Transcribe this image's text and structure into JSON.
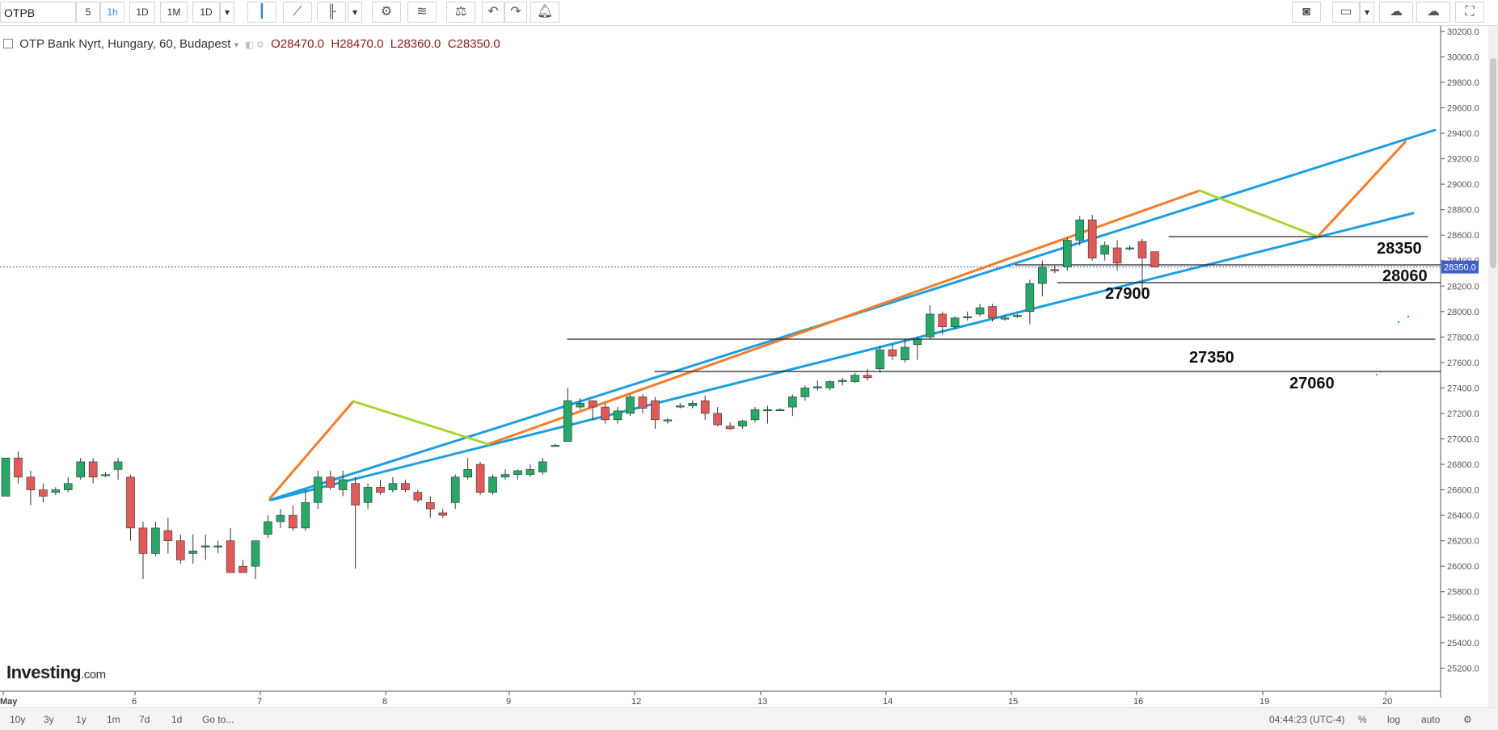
{
  "toolbar": {
    "symbol": "OTPB",
    "intervals": [
      "5",
      "1h",
      "1D",
      "1M",
      "1D"
    ],
    "active_interval": "1h",
    "icons": [
      "candlestick-icon",
      "line-chart-icon",
      "bar-style-icon",
      "dropdown-icon",
      "settings-icon",
      "indicators-icon",
      "compare-icon",
      "undo-icon",
      "redo-icon",
      "alert-icon"
    ],
    "right_icons": [
      "camera-icon",
      "layout-icon",
      "cloud-download-icon",
      "cloud-upload-icon",
      "fullscreen-icon"
    ]
  },
  "legend": {
    "title": "OTP Bank Nyrt, Hungary, 60, Budapest",
    "open": "O28470.0",
    "high": "H28470.0",
    "low": "L28360.0",
    "close": "C28350.0"
  },
  "logo": {
    "name": "Investing",
    "suffix": ".com"
  },
  "bottom": {
    "ranges": [
      "10y",
      "3y",
      "1y",
      "1m",
      "7d",
      "1d"
    ],
    "goto": "Go to...",
    "time": "04:44:23 (UTC-4)",
    "percent": "%",
    "log": "log",
    "auto": "auto"
  },
  "colors": {
    "up": "#26a869",
    "down": "#e05a5a",
    "channel": "#1e9ee0",
    "orange": "#f47c2a",
    "lime": "#a8d530",
    "price_line": "#3d5fc9"
  },
  "chart_data": {
    "type": "candlestick",
    "price_axis_ticks": [
      30200,
      30000,
      29800,
      29600,
      29400,
      29200,
      29000,
      28800,
      28600,
      28400,
      28200,
      28000,
      27800,
      27600,
      27400,
      27200,
      27000,
      26800,
      26600,
      26400,
      26200,
      26000,
      25800,
      25600,
      25400,
      25200
    ],
    "price_axis_format": "0.0",
    "time_axis_labels": [
      "May",
      "6",
      "7",
      "8",
      "9",
      "12",
      "13",
      "14",
      "15",
      "16",
      "19",
      "20"
    ],
    "current_price": 28350.0,
    "current_price_label": "28350.0",
    "ylim": [
      25050,
      30250
    ],
    "candles": [
      {
        "o": 26550,
        "h": 26800,
        "l": 26550,
        "c": 26850
      },
      {
        "o": 26850,
        "h": 26900,
        "l": 26650,
        "c": 26700
      },
      {
        "o": 26700,
        "h": 26750,
        "l": 26480,
        "c": 26600
      },
      {
        "o": 26600,
        "h": 26650,
        "l": 26500,
        "c": 26550
      },
      {
        "o": 26580,
        "h": 26620,
        "l": 26560,
        "c": 26600
      },
      {
        "o": 26600,
        "h": 26700,
        "l": 26580,
        "c": 26650
      },
      {
        "o": 26700,
        "h": 26850,
        "l": 26680,
        "c": 26820
      },
      {
        "o": 26820,
        "h": 26850,
        "l": 26650,
        "c": 26700
      },
      {
        "o": 26720,
        "h": 26740,
        "l": 26700,
        "c": 26720
      },
      {
        "o": 26760,
        "h": 26850,
        "l": 26680,
        "c": 26820
      },
      {
        "o": 26700,
        "h": 26720,
        "l": 26200,
        "c": 26300
      },
      {
        "o": 26300,
        "h": 26350,
        "l": 25900,
        "c": 26100
      },
      {
        "o": 26100,
        "h": 26350,
        "l": 26080,
        "c": 26300
      },
      {
        "o": 26280,
        "h": 26380,
        "l": 26100,
        "c": 26200
      },
      {
        "o": 26200,
        "h": 26250,
        "l": 26020,
        "c": 26050
      },
      {
        "o": 26100,
        "h": 26250,
        "l": 26020,
        "c": 26120
      },
      {
        "o": 26150,
        "h": 26250,
        "l": 26050,
        "c": 26160
      },
      {
        "o": 26160,
        "h": 26200,
        "l": 26100,
        "c": 26160
      },
      {
        "o": 26200,
        "h": 26300,
        "l": 25950,
        "c": 25950
      },
      {
        "o": 26000,
        "h": 26050,
        "l": 25950,
        "c": 25950
      },
      {
        "o": 26000,
        "h": 26200,
        "l": 25900,
        "c": 26200
      },
      {
        "o": 26250,
        "h": 26400,
        "l": 26220,
        "c": 26350
      },
      {
        "o": 26350,
        "h": 26450,
        "l": 26300,
        "c": 26400
      },
      {
        "o": 26400,
        "h": 26480,
        "l": 26280,
        "c": 26300
      },
      {
        "o": 26300,
        "h": 26600,
        "l": 26280,
        "c": 26500
      },
      {
        "o": 26500,
        "h": 26750,
        "l": 26450,
        "c": 26700
      },
      {
        "o": 26700,
        "h": 26750,
        "l": 26600,
        "c": 26620
      },
      {
        "o": 26600,
        "h": 26750,
        "l": 26550,
        "c": 26680
      },
      {
        "o": 26650,
        "h": 26700,
        "l": 25980,
        "c": 26480
      },
      {
        "o": 26500,
        "h": 26650,
        "l": 26450,
        "c": 26620
      },
      {
        "o": 26620,
        "h": 26680,
        "l": 26560,
        "c": 26580
      },
      {
        "o": 26600,
        "h": 26700,
        "l": 26580,
        "c": 26650
      },
      {
        "o": 26650,
        "h": 26680,
        "l": 26580,
        "c": 26600
      },
      {
        "o": 26580,
        "h": 26600,
        "l": 26500,
        "c": 26520
      },
      {
        "o": 26500,
        "h": 26550,
        "l": 26380,
        "c": 26450
      },
      {
        "o": 26420,
        "h": 26450,
        "l": 26380,
        "c": 26400
      },
      {
        "o": 26500,
        "h": 26720,
        "l": 26450,
        "c": 26700
      },
      {
        "o": 26700,
        "h": 26850,
        "l": 26680,
        "c": 26760
      },
      {
        "o": 26800,
        "h": 26820,
        "l": 26560,
        "c": 26580
      },
      {
        "o": 26580,
        "h": 26720,
        "l": 26560,
        "c": 26700
      },
      {
        "o": 26700,
        "h": 26760,
        "l": 26680,
        "c": 26720
      },
      {
        "o": 26720,
        "h": 26760,
        "l": 26680,
        "c": 26750
      },
      {
        "o": 26720,
        "h": 26800,
        "l": 26700,
        "c": 26760
      },
      {
        "o": 26740,
        "h": 26850,
        "l": 26720,
        "c": 26820
      },
      {
        "o": 26940,
        "h": 26960,
        "l": 26940,
        "c": 26950
      },
      {
        "o": 26980,
        "h": 27400,
        "l": 26980,
        "c": 27300
      },
      {
        "o": 27250,
        "h": 27320,
        "l": 27230,
        "c": 27280
      },
      {
        "o": 27300,
        "h": 27300,
        "l": 27150,
        "c": 27250
      },
      {
        "o": 27250,
        "h": 27280,
        "l": 27120,
        "c": 27150
      },
      {
        "o": 27150,
        "h": 27250,
        "l": 27120,
        "c": 27220
      },
      {
        "o": 27200,
        "h": 27350,
        "l": 27180,
        "c": 27330
      },
      {
        "o": 27330,
        "h": 27350,
        "l": 27200,
        "c": 27240
      },
      {
        "o": 27300,
        "h": 27330,
        "l": 27080,
        "c": 27150
      },
      {
        "o": 27150,
        "h": 27160,
        "l": 27120,
        "c": 27150
      },
      {
        "o": 27250,
        "h": 27280,
        "l": 27240,
        "c": 27260
      },
      {
        "o": 27260,
        "h": 27300,
        "l": 27240,
        "c": 27280
      },
      {
        "o": 27300,
        "h": 27340,
        "l": 27150,
        "c": 27200
      },
      {
        "o": 27200,
        "h": 27250,
        "l": 27100,
        "c": 27110
      },
      {
        "o": 27100,
        "h": 27130,
        "l": 27070,
        "c": 27080
      },
      {
        "o": 27100,
        "h": 27150,
        "l": 27080,
        "c": 27140
      },
      {
        "o": 27150,
        "h": 27250,
        "l": 27130,
        "c": 27230
      },
      {
        "o": 27230,
        "h": 27260,
        "l": 27120,
        "c": 27230
      },
      {
        "o": 27230,
        "h": 27240,
        "l": 27220,
        "c": 27230
      },
      {
        "o": 27250,
        "h": 27350,
        "l": 27180,
        "c": 27330
      },
      {
        "o": 27330,
        "h": 27420,
        "l": 27300,
        "c": 27400
      },
      {
        "o": 27400,
        "h": 27460,
        "l": 27380,
        "c": 27410
      },
      {
        "o": 27400,
        "h": 27460,
        "l": 27380,
        "c": 27450
      },
      {
        "o": 27450,
        "h": 27480,
        "l": 27420,
        "c": 27460
      },
      {
        "o": 27450,
        "h": 27520,
        "l": 27440,
        "c": 27500
      },
      {
        "o": 27500,
        "h": 27550,
        "l": 27460,
        "c": 27480
      },
      {
        "o": 27550,
        "h": 27730,
        "l": 27520,
        "c": 27700
      },
      {
        "o": 27700,
        "h": 27740,
        "l": 27620,
        "c": 27650
      },
      {
        "o": 27620,
        "h": 27780,
        "l": 27600,
        "c": 27720
      },
      {
        "o": 27740,
        "h": 27800,
        "l": 27620,
        "c": 27780
      },
      {
        "o": 27800,
        "h": 28050,
        "l": 27780,
        "c": 27980
      },
      {
        "o": 27980,
        "h": 28000,
        "l": 27820,
        "c": 27880
      },
      {
        "o": 27880,
        "h": 27960,
        "l": 27860,
        "c": 27950
      },
      {
        "o": 27950,
        "h": 28000,
        "l": 27930,
        "c": 27960
      },
      {
        "o": 27980,
        "h": 28060,
        "l": 27960,
        "c": 28030
      },
      {
        "o": 28040,
        "h": 28060,
        "l": 27920,
        "c": 27950
      },
      {
        "o": 27950,
        "h": 27970,
        "l": 27930,
        "c": 27950
      },
      {
        "o": 27960,
        "h": 27980,
        "l": 27950,
        "c": 27970
      },
      {
        "o": 28000,
        "h": 28250,
        "l": 27900,
        "c": 28220
      },
      {
        "o": 28220,
        "h": 28400,
        "l": 28120,
        "c": 28350
      },
      {
        "o": 28330,
        "h": 28360,
        "l": 28300,
        "c": 28320
      },
      {
        "o": 28350,
        "h": 28580,
        "l": 28320,
        "c": 28560
      },
      {
        "o": 28560,
        "h": 28750,
        "l": 28520,
        "c": 28720
      },
      {
        "o": 28720,
        "h": 28760,
        "l": 28400,
        "c": 28420
      },
      {
        "o": 28450,
        "h": 28550,
        "l": 28400,
        "c": 28520
      },
      {
        "o": 28500,
        "h": 28560,
        "l": 28320,
        "c": 28380
      },
      {
        "o": 28500,
        "h": 28520,
        "l": 28480,
        "c": 28500
      },
      {
        "o": 28550,
        "h": 28570,
        "l": 28170,
        "c": 28420
      },
      {
        "o": 28470,
        "h": 28470,
        "l": 28360,
        "c": 28350
      }
    ],
    "annotations": [
      "28350",
      "28060",
      "27900",
      "27350",
      "27060"
    ]
  }
}
